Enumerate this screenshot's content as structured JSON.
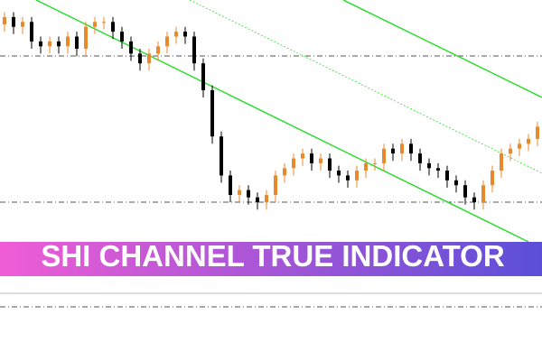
{
  "chart_data": {
    "type": "candlestick",
    "title": "SHI CHANNEL TRUE INDICATOR",
    "ylim": [
      0,
      100
    ],
    "up_color": "#e8892b",
    "down_color": "#000000",
    "open": [
      90,
      93,
      89,
      91,
      83,
      81,
      83,
      81,
      85,
      80,
      89,
      91,
      91,
      87,
      83,
      78,
      74,
      78,
      81,
      85,
      87,
      85,
      74,
      63,
      44,
      28,
      20,
      22,
      19,
      17,
      20,
      28,
      31,
      35,
      37,
      33,
      35,
      30,
      28,
      26,
      30,
      33,
      33,
      39,
      37,
      41,
      37,
      33,
      31,
      30,
      26,
      24,
      19,
      17,
      24,
      30,
      37,
      39,
      41,
      43
    ],
    "high": [
      95,
      95,
      93,
      93,
      85,
      85,
      85,
      87,
      87,
      91,
      93,
      93,
      93,
      89,
      85,
      80,
      80,
      83,
      87,
      89,
      89,
      87,
      76,
      65,
      46,
      30,
      24,
      24,
      21,
      22,
      30,
      33,
      37,
      39,
      39,
      37,
      37,
      32,
      30,
      32,
      35,
      35,
      41,
      41,
      43,
      43,
      39,
      35,
      33,
      32,
      28,
      26,
      21,
      26,
      32,
      39,
      41,
      43,
      45,
      50
    ],
    "low": [
      87,
      86,
      86,
      80,
      78,
      78,
      78,
      78,
      77,
      77,
      86,
      88,
      84,
      80,
      75,
      71,
      71,
      75,
      78,
      82,
      82,
      71,
      60,
      41,
      25,
      17,
      17,
      16,
      14,
      14,
      17,
      25,
      28,
      32,
      30,
      30,
      27,
      25,
      23,
      23,
      27,
      30,
      30,
      34,
      34,
      34,
      30,
      28,
      27,
      23,
      21,
      16,
      14,
      14,
      21,
      27,
      34,
      36,
      38,
      40
    ],
    "close": [
      93,
      89,
      91,
      83,
      81,
      83,
      81,
      85,
      80,
      89,
      91,
      91,
      87,
      83,
      78,
      74,
      78,
      81,
      85,
      87,
      85,
      74,
      63,
      44,
      28,
      20,
      22,
      19,
      17,
      20,
      28,
      31,
      35,
      37,
      33,
      35,
      30,
      28,
      26,
      30,
      33,
      33,
      39,
      37,
      41,
      37,
      33,
      31,
      30,
      26,
      24,
      19,
      17,
      24,
      30,
      37,
      39,
      41,
      43,
      48
    ]
  }
}
